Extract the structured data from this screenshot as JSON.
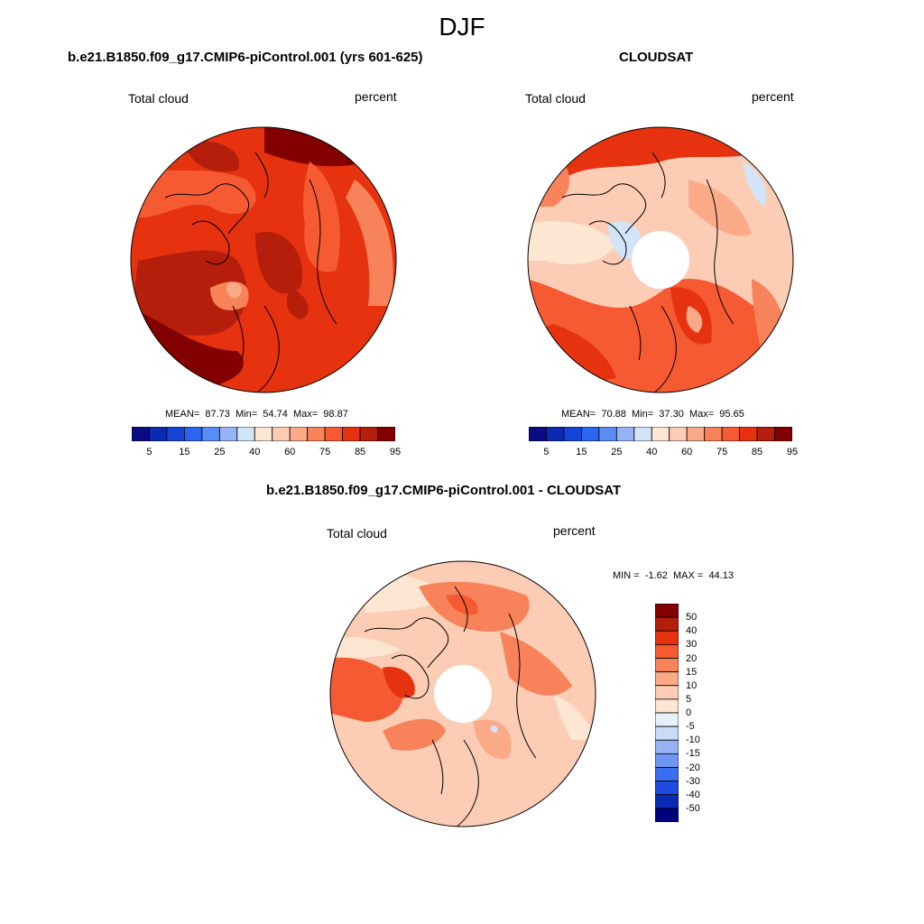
{
  "main_title": "DJF",
  "panels": {
    "model": {
      "title": "b.e21.B1850.f09_g17.CMIP6-piControl.001 (yrs 601-625)",
      "left_label": "Total cloud",
      "right_label": "percent",
      "stats": {
        "mean_label": "MEAN=",
        "mean": "87.73",
        "min_label": "Min=",
        "min": "54.74",
        "max_label": "Max=",
        "max": "98.87"
      }
    },
    "obs": {
      "title": "CLOUDSAT",
      "left_label": "Total cloud",
      "right_label": "percent",
      "stats": {
        "mean_label": "MEAN=",
        "mean": "70.88",
        "min_label": "Min=",
        "min": "37.30",
        "max_label": "Max=",
        "max": "95.65"
      }
    },
    "diff": {
      "title": "b.e21.B1850.f09_g17.CMIP6-piControl.001 - CLOUDSAT",
      "left_label": "Total cloud",
      "right_label": "percent",
      "minmax": {
        "min_label": "MIN =",
        "min": "-1.62",
        "max_label": "MAX =",
        "max": "44.13"
      }
    }
  },
  "colorbar_abs": {
    "colors": [
      "#0a0a82",
      "#0a2ab4",
      "#1445d8",
      "#2a64f0",
      "#5a8cf5",
      "#96b4f5",
      "#d2e4f8",
      "#fde6d2",
      "#fcccb4",
      "#fbaa87",
      "#f8825a",
      "#f55a32",
      "#e6320f",
      "#b41e0a",
      "#820000"
    ],
    "labels": [
      "5",
      "15",
      "25",
      "40",
      "60",
      "75",
      "85",
      "95"
    ]
  },
  "colorbar_diff": {
    "colors": [
      "#820000",
      "#b41e0a",
      "#e6320f",
      "#f55a32",
      "#f8825a",
      "#fbaa87",
      "#fcccb4",
      "#fde6d2",
      "#e6f0fa",
      "#c8dcf5",
      "#96b4f5",
      "#6e96f5",
      "#3c6ef0",
      "#1e4be1",
      "#0a2ab4",
      "#00007d"
    ],
    "labels": [
      "50",
      "40",
      "30",
      "20",
      "15",
      "10",
      "5",
      "0",
      "-5",
      "-10",
      "-15",
      "-20",
      "-30",
      "-40",
      "-50"
    ]
  }
}
